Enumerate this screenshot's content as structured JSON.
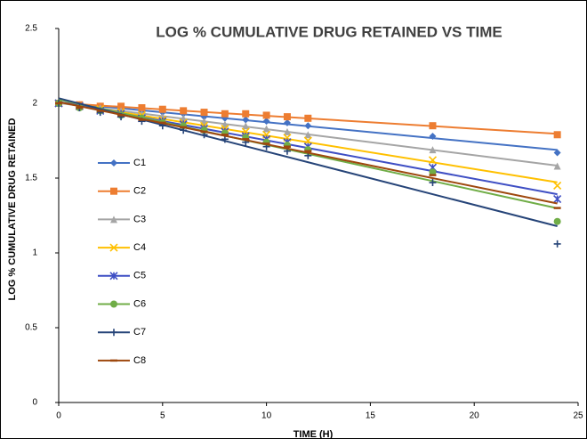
{
  "chart_data": {
    "type": "scatter",
    "title": "LOG % CUMULATIVE DRUG RETAINED VS TIME",
    "x_label": "TIME (H)",
    "y_label": "LOG % CUMULATIVE DRUG RETAINED",
    "x": [
      0,
      1,
      2,
      3,
      4,
      5,
      6,
      7,
      8,
      9,
      10,
      11,
      12,
      18,
      24
    ],
    "xlim": [
      0,
      25
    ],
    "xticks": [
      0,
      5,
      10,
      15,
      20,
      25
    ],
    "ylim": [
      0,
      2.5
    ],
    "yticks": [
      0,
      0.5,
      1,
      1.5,
      2,
      2.5
    ],
    "grid": false,
    "trendline": "linear",
    "legend": "left",
    "series": [
      {
        "name": "C1",
        "color": "#4472c4",
        "marker": "diamond",
        "values": [
          2,
          1.99,
          1.98,
          1.96,
          1.95,
          1.94,
          1.93,
          1.91,
          1.9,
          1.89,
          1.88,
          1.87,
          1.85,
          1.78,
          1.67
        ]
      },
      {
        "name": "C2",
        "color": "#ed7d31",
        "marker": "square",
        "values": [
          2,
          1.99,
          1.98,
          1.98,
          1.97,
          1.96,
          1.95,
          1.94,
          1.93,
          1.93,
          1.92,
          1.91,
          1.9,
          1.85,
          1.79
        ]
      },
      {
        "name": "C3",
        "color": "#a5a5a5",
        "marker": "triangle",
        "values": [
          2,
          1.98,
          1.97,
          1.95,
          1.93,
          1.91,
          1.9,
          1.88,
          1.86,
          1.85,
          1.83,
          1.81,
          1.79,
          1.69,
          1.58
        ]
      },
      {
        "name": "C4",
        "color": "#ffc000",
        "marker": "x",
        "values": [
          2,
          1.98,
          1.96,
          1.94,
          1.92,
          1.89,
          1.87,
          1.85,
          1.83,
          1.81,
          1.79,
          1.77,
          1.75,
          1.62,
          1.45
        ]
      },
      {
        "name": "C5",
        "color": "#3f4fc4",
        "marker": "star",
        "values": [
          2,
          1.98,
          1.95,
          1.93,
          1.9,
          1.88,
          1.86,
          1.83,
          1.81,
          1.78,
          1.76,
          1.74,
          1.71,
          1.57,
          1.36
        ]
      },
      {
        "name": "C6",
        "color": "#70ad47",
        "marker": "circle",
        "values": [
          2,
          1.97,
          1.95,
          1.92,
          1.9,
          1.87,
          1.85,
          1.82,
          1.8,
          1.77,
          1.74,
          1.72,
          1.69,
          1.54,
          1.21
        ]
      },
      {
        "name": "C7",
        "color": "#264478",
        "marker": "plus",
        "values": [
          2,
          1.97,
          1.94,
          1.91,
          1.88,
          1.85,
          1.82,
          1.79,
          1.76,
          1.74,
          1.71,
          1.68,
          1.65,
          1.47,
          1.06
        ]
      },
      {
        "name": "C8",
        "color": "#9e480e",
        "marker": "dash",
        "values": [
          2,
          1.97,
          1.95,
          1.92,
          1.89,
          1.87,
          1.84,
          1.81,
          1.79,
          1.76,
          1.73,
          1.71,
          1.68,
          1.52,
          1.3
        ]
      }
    ]
  }
}
